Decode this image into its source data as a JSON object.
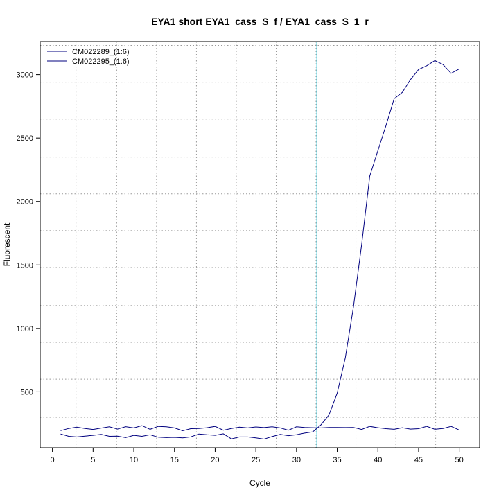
{
  "chart_data": {
    "type": "line",
    "title": "EYA1 short EYA1_cass_S_f / EYA1_cass_S_1_r",
    "xlabel": "Cycle",
    "ylabel": "Fluorescent",
    "xlim": [
      -1.5,
      52.5
    ],
    "ylim": [
      60,
      3260
    ],
    "x_ticks": [
      0,
      5,
      10,
      15,
      20,
      25,
      30,
      35,
      40,
      45,
      50
    ],
    "y_ticks": [
      500,
      1000,
      1500,
      2000,
      2500,
      3000
    ],
    "x_grid_dotted": [
      2.9,
      7.9,
      12.8,
      17.7,
      22.6,
      27.5,
      32.4,
      37.3,
      42.2,
      47.1
    ],
    "y_grid_dotted": [
      300,
      600,
      890,
      1180,
      1480,
      1770,
      2060,
      2350,
      2650,
      2940,
      3230
    ],
    "threshold_x": 32.5,
    "threshold_color": "#00bcd4",
    "legend_position": "top-left",
    "x": [
      1,
      2,
      3,
      4,
      5,
      6,
      7,
      8,
      9,
      10,
      11,
      12,
      13,
      14,
      15,
      16,
      17,
      18,
      19,
      20,
      21,
      22,
      23,
      24,
      25,
      26,
      27,
      28,
      29,
      30,
      31,
      32,
      33,
      34,
      35,
      36,
      37,
      38,
      39,
      40,
      41,
      42,
      43,
      44,
      45,
      46,
      47,
      48,
      49,
      50
    ],
    "series": [
      {
        "name": "CM022289_(1:6)",
        "color": "#00007f",
        "values": [
          168,
          150,
          145,
          152,
          158,
          165,
          150,
          152,
          140,
          158,
          150,
          162,
          143,
          140,
          142,
          138,
          145,
          168,
          162,
          158,
          170,
          130,
          145,
          145,
          138,
          128,
          148,
          165,
          155,
          162,
          175,
          185,
          240,
          320,
          490,
          770,
          1170,
          1660,
          2200,
          2400,
          2600,
          2810,
          2860,
          2960,
          3040,
          3070,
          3110,
          3080,
          3010,
          3045
        ]
      },
      {
        "name": "CM022295_(1:6)",
        "color": "#00007f",
        "values": [
          195,
          212,
          222,
          212,
          204,
          215,
          225,
          207,
          226,
          216,
          234,
          205,
          228,
          225,
          216,
          194,
          210,
          212,
          218,
          228,
          198,
          212,
          222,
          216,
          224,
          219,
          225,
          216,
          198,
          225,
          220,
          218,
          216,
          220,
          220,
          219,
          220,
          204,
          228,
          218,
          210,
          205,
          218,
          207,
          210,
          228,
          205,
          212,
          228,
          200
        ]
      }
    ]
  }
}
